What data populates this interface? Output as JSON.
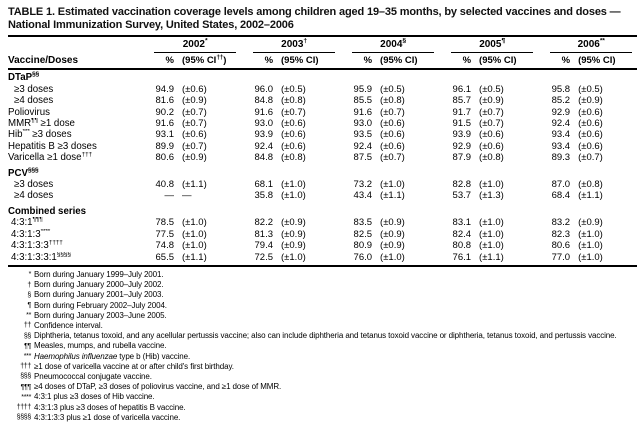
{
  "title": "TABLE 1. Estimated vaccination coverage levels among children aged 19–35 months, by selected vaccines and doses — National Immunization Survey, United States, 2002–2006",
  "table": {
    "row_header": "Vaccine/Doses",
    "years": [
      {
        "year": "2002",
        "sup": "*",
        "pct": "%",
        "ci_pre": "(95% CI",
        "ci_sup": "††",
        "ci_post": ")"
      },
      {
        "year": "2003",
        "sup": "†",
        "pct": "%",
        "ci_pre": "(95% CI",
        "ci_sup": "",
        "ci_post": ")"
      },
      {
        "year": "2004",
        "sup": "§",
        "pct": "%",
        "ci_pre": "(95% CI",
        "ci_sup": "",
        "ci_post": ")"
      },
      {
        "year": "2005",
        "sup": "¶",
        "pct": "%",
        "ci_pre": "(95% CI",
        "ci_sup": "",
        "ci_post": ")"
      },
      {
        "year": "2006",
        "sup": "**",
        "pct": "%",
        "ci_pre": "(95% CI",
        "ci_sup": "",
        "ci_post": ")"
      }
    ],
    "rows": [
      {
        "type": "group",
        "label": {
          "pre": "DTaP",
          "sup": "§§",
          "post": ""
        }
      },
      {
        "type": "data",
        "indent": "indent",
        "label": {
          "pre": "≥3 doses",
          "sup": "",
          "post": ""
        },
        "values": [
          "94.9",
          "(±0.6)",
          "96.0",
          "(±0.5)",
          "95.9",
          "(±0.5)",
          "96.1",
          "(±0.5)",
          "95.8",
          "(±0.5)"
        ]
      },
      {
        "type": "data",
        "indent": "indent",
        "label": {
          "pre": "≥4 doses",
          "sup": "",
          "post": ""
        },
        "values": [
          "81.6",
          "(±0.9)",
          "84.8",
          "(±0.8)",
          "85.5",
          "(±0.8)",
          "85.7",
          "(±0.9)",
          "85.2",
          "(±0.9)"
        ]
      },
      {
        "type": "data",
        "indent": "",
        "label": {
          "pre": "Poliovirus",
          "sup": "",
          "post": ""
        },
        "values": [
          "90.2",
          "(±0.7)",
          "91.6",
          "(±0.7)",
          "91.6",
          "(±0.7)",
          "91.7",
          "(±0.7)",
          "92.9",
          "(±0.6)"
        ]
      },
      {
        "type": "data",
        "indent": "",
        "label": {
          "pre": "MMR",
          "sup": "¶¶",
          "post": " ≥1 dose"
        },
        "values": [
          "91.6",
          "(±0.7)",
          "93.0",
          "(±0.6)",
          "93.0",
          "(±0.6)",
          "91.5",
          "(±0.7)",
          "92.4",
          "(±0.6)"
        ]
      },
      {
        "type": "data",
        "indent": "",
        "label": {
          "pre": "Hib",
          "sup": "***",
          "post": " ≥3 doses"
        },
        "values": [
          "93.1",
          "(±0.6)",
          "93.9",
          "(±0.6)",
          "93.5",
          "(±0.6)",
          "93.9",
          "(±0.6)",
          "93.4",
          "(±0.6)"
        ]
      },
      {
        "type": "data",
        "indent": "",
        "label": {
          "pre": "Hepatitis B ≥3 doses",
          "sup": "",
          "post": ""
        },
        "values": [
          "89.9",
          "(±0.7)",
          "92.4",
          "(±0.6)",
          "92.4",
          "(±0.6)",
          "92.9",
          "(±0.6)",
          "93.4",
          "(±0.6)"
        ]
      },
      {
        "type": "data",
        "indent": "",
        "label": {
          "pre": "Varicella ≥1 dose",
          "sup": "†††",
          "post": ""
        },
        "values": [
          "80.6",
          "(±0.9)",
          "84.8",
          "(±0.8)",
          "87.5",
          "(±0.7)",
          "87.9",
          "(±0.8)",
          "89.3",
          "(±0.7)"
        ]
      },
      {
        "type": "group",
        "label": {
          "pre": "PCV",
          "sup": "§§§",
          "post": ""
        }
      },
      {
        "type": "data",
        "indent": "indent",
        "label": {
          "pre": "≥3 doses",
          "sup": "",
          "post": ""
        },
        "values": [
          "40.8",
          "(±1.1)",
          "68.1",
          "(±1.0)",
          "73.2",
          "(±1.0)",
          "82.8",
          "(±1.0)",
          "87.0",
          "(±0.8)"
        ]
      },
      {
        "type": "data",
        "indent": "indent",
        "label": {
          "pre": "≥4 doses",
          "sup": "",
          "post": ""
        },
        "values": [
          "—",
          "—",
          "35.8",
          "(±1.0)",
          "43.4",
          "(±1.1)",
          "53.7",
          "(±1.3)",
          "68.4",
          "(±1.1)"
        ]
      },
      {
        "type": "group",
        "label": {
          "pre": "Combined series",
          "sup": "",
          "post": ""
        }
      },
      {
        "type": "data",
        "indent": "indent2",
        "label": {
          "pre": "4:3:1",
          "sup": "¶¶¶",
          "post": ""
        },
        "values": [
          "78.5",
          "(±1.0)",
          "82.2",
          "(±0.9)",
          "83.5",
          "(±0.9)",
          "83.1",
          "(±1.0)",
          "83.2",
          "(±0.9)"
        ]
      },
      {
        "type": "data",
        "indent": "indent2",
        "label": {
          "pre": "4:3:1:3",
          "sup": "****",
          "post": ""
        },
        "values": [
          "77.5",
          "(±1.0)",
          "81.3",
          "(±0.9)",
          "82.5",
          "(±0.9)",
          "82.4",
          "(±1.0)",
          "82.3",
          "(±1.0)"
        ]
      },
      {
        "type": "data",
        "indent": "indent2",
        "label": {
          "pre": "4:3:1:3:3",
          "sup": "††††",
          "post": ""
        },
        "values": [
          "74.8",
          "(±1.0)",
          "79.4",
          "(±0.9)",
          "80.9",
          "(±0.9)",
          "80.8",
          "(±1.0)",
          "80.6",
          "(±1.0)"
        ]
      },
      {
        "type": "data",
        "indent": "indent2",
        "label": {
          "pre": "4:3:1:3:3:1",
          "sup": "§§§§",
          "post": ""
        },
        "values": [
          "65.5",
          "(±1.1)",
          "72.5",
          "(±1.0)",
          "76.0",
          "(±1.0)",
          "76.1",
          "(±1.1)",
          "77.0",
          "(±1.0)"
        ]
      }
    ]
  },
  "footnotes": [
    {
      "mark": "*",
      "pre": "Born during January 1999–July 2001."
    },
    {
      "mark": "†",
      "pre": "Born during January 2000–July 2002."
    },
    {
      "mark": "§",
      "pre": "Born during January 2001–July 2003."
    },
    {
      "mark": "¶",
      "pre": "Born during February 2002–July 2004."
    },
    {
      "mark": "**",
      "pre": "Born during January 2003–June 2005."
    },
    {
      "mark": "††",
      "pre": "Confidence interval."
    },
    {
      "mark": "§§",
      "pre": "Diphtheria, tetanus toxoid, and any acellular pertussis vaccine; also can include diphtheria and tetanus toxoid vaccine or diphtheria, tetanus toxoid, and pertussis vaccine."
    },
    {
      "mark": "¶¶",
      "pre": "Measles, mumps, and rubella vaccine."
    },
    {
      "mark": "***",
      "pre": "",
      "italic": "Haemophilus influenzae",
      "post": " type b (Hib) vaccine."
    },
    {
      "mark": "†††",
      "pre": "≥1 dose of varicella vaccine at or after child's first birthday."
    },
    {
      "mark": "§§§",
      "pre": "Pneumococcal conjugate vaccine."
    },
    {
      "mark": "¶¶¶",
      "pre": "≥4 doses of DTaP, ≥3 doses of poliovirus vaccine, and ≥1 dose of MMR."
    },
    {
      "mark": "****",
      "pre": "4:3:1 plus ≥3 doses of Hib vaccine."
    },
    {
      "mark": "††††",
      "pre": "4:3:1:3 plus ≥3 doses of hepatitis B vaccine."
    },
    {
      "mark": "§§§§",
      "pre": "4:3:1:3:3 plus ≥1 dose of varicella vaccine."
    }
  ]
}
